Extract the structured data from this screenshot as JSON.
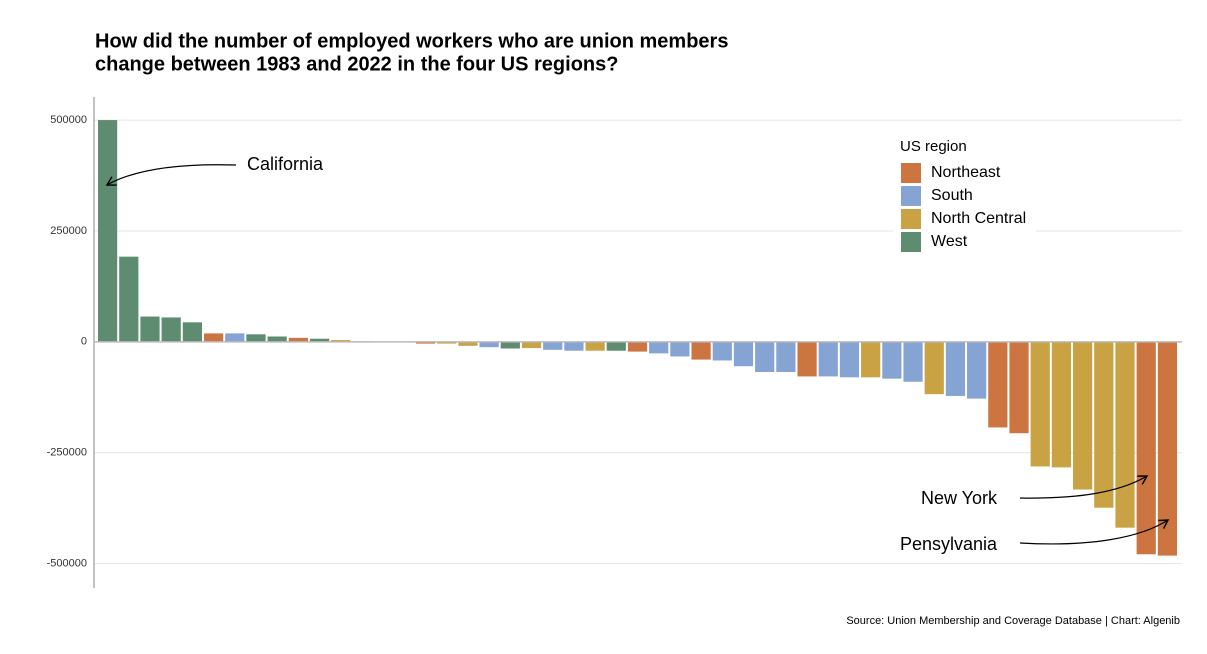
{
  "chart_data": {
    "type": "bar",
    "title": [
      "How did the number of employed workers who are union members",
      "change between 1983 and 2022 in the four US regions?"
    ],
    "caption": "Source: Union Membership and Coverage Database | Chart: Algenib",
    "legend_title": "US region",
    "categories": [
      null,
      null,
      null,
      null,
      null,
      null,
      null,
      null,
      null,
      null,
      null,
      null,
      null,
      null,
      null,
      null,
      null,
      null,
      null,
      null,
      null,
      null,
      null,
      null,
      null,
      null,
      null,
      null,
      null,
      null,
      null,
      null,
      null,
      null,
      null,
      null,
      null,
      null,
      null,
      null,
      null,
      null,
      null,
      null,
      null,
      null,
      null,
      null,
      null,
      null,
      null
    ],
    "series": [
      {
        "name": "Northeast",
        "color": "#cc7540",
        "values": [
          null,
          null,
          null,
          null,
          null,
          19000,
          null,
          null,
          null,
          9000,
          null,
          null,
          null,
          null,
          null,
          -4000,
          null,
          null,
          null,
          null,
          null,
          null,
          null,
          null,
          null,
          -22000,
          null,
          null,
          -40000,
          null,
          null,
          null,
          null,
          -78000,
          null,
          null,
          null,
          null,
          null,
          null,
          null,
          null,
          -193000,
          -206000,
          null,
          null,
          null,
          null,
          null,
          -479000,
          -482000
        ]
      },
      {
        "name": "South",
        "color": "#85a3d3",
        "values": [
          null,
          null,
          null,
          null,
          null,
          null,
          19000,
          null,
          null,
          null,
          null,
          null,
          1500,
          null,
          -1000,
          null,
          null,
          null,
          -12000,
          null,
          null,
          -18000,
          -20000,
          null,
          null,
          null,
          -26000,
          -33000,
          null,
          -42000,
          -55000,
          -68000,
          -68000,
          null,
          -78000,
          -80000,
          null,
          -83000,
          -90000,
          null,
          -122000,
          -128000,
          null,
          null,
          null,
          null,
          null,
          null,
          null,
          null,
          null
        ]
      },
      {
        "name": "North Central",
        "color": "#c9a243",
        "values": [
          null,
          null,
          null,
          null,
          null,
          null,
          null,
          null,
          null,
          null,
          null,
          4000,
          null,
          null,
          null,
          null,
          -4000,
          -9000,
          null,
          null,
          -14000,
          null,
          null,
          -20000,
          null,
          null,
          null,
          null,
          null,
          null,
          null,
          null,
          null,
          null,
          null,
          null,
          -80000,
          null,
          null,
          -118000,
          null,
          null,
          null,
          null,
          -281000,
          -283000,
          -333000,
          -374000,
          -419000,
          null,
          null
        ]
      },
      {
        "name": "West",
        "color": "#5e8c71",
        "values": [
          500000,
          192000,
          57000,
          55000,
          44000,
          null,
          null,
          17000,
          12000,
          null,
          7000,
          null,
          null,
          500,
          null,
          null,
          null,
          null,
          null,
          -15000,
          null,
          null,
          null,
          null,
          -20000,
          null,
          null,
          null,
          null,
          null,
          null,
          null,
          null,
          null,
          null,
          null,
          null,
          null,
          null,
          null,
          null,
          null,
          null,
          null,
          null,
          null,
          null,
          null,
          null,
          null,
          null
        ]
      }
    ],
    "annotations": [
      "California",
      "New York",
      "Pensylvania"
    ],
    "ylim": [
      -555000,
      552000
    ],
    "yticks": [
      500000,
      250000,
      0,
      -250000,
      -500000
    ],
    "grid": true
  }
}
